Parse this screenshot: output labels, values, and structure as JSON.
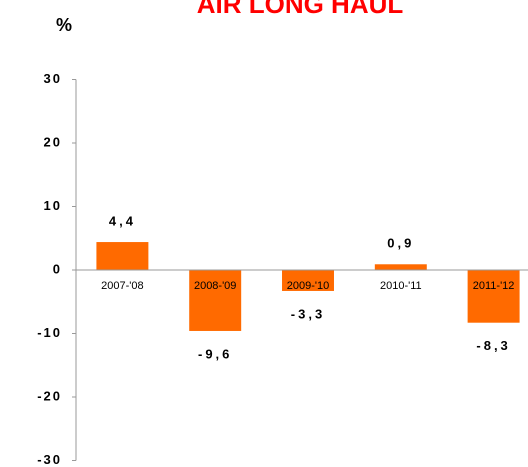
{
  "chart_data": {
    "type": "bar",
    "title": "AIR LONG HAUL",
    "ylabel": "%",
    "categories": [
      "2007-'08",
      "2008-'09",
      "2009-'10",
      "2010-'11",
      "2011-'12"
    ],
    "values": [
      4.4,
      -9.6,
      -3.3,
      0.9,
      -8.3
    ],
    "value_labels": [
      "4,4",
      "-9,6",
      "-3,3",
      "0,9",
      "-8,3"
    ],
    "color": "#ff6a00",
    "ylim": [
      -30,
      30
    ],
    "yticks": [
      30,
      20,
      10,
      0,
      -10,
      -20,
      -30
    ],
    "grid": false
  }
}
